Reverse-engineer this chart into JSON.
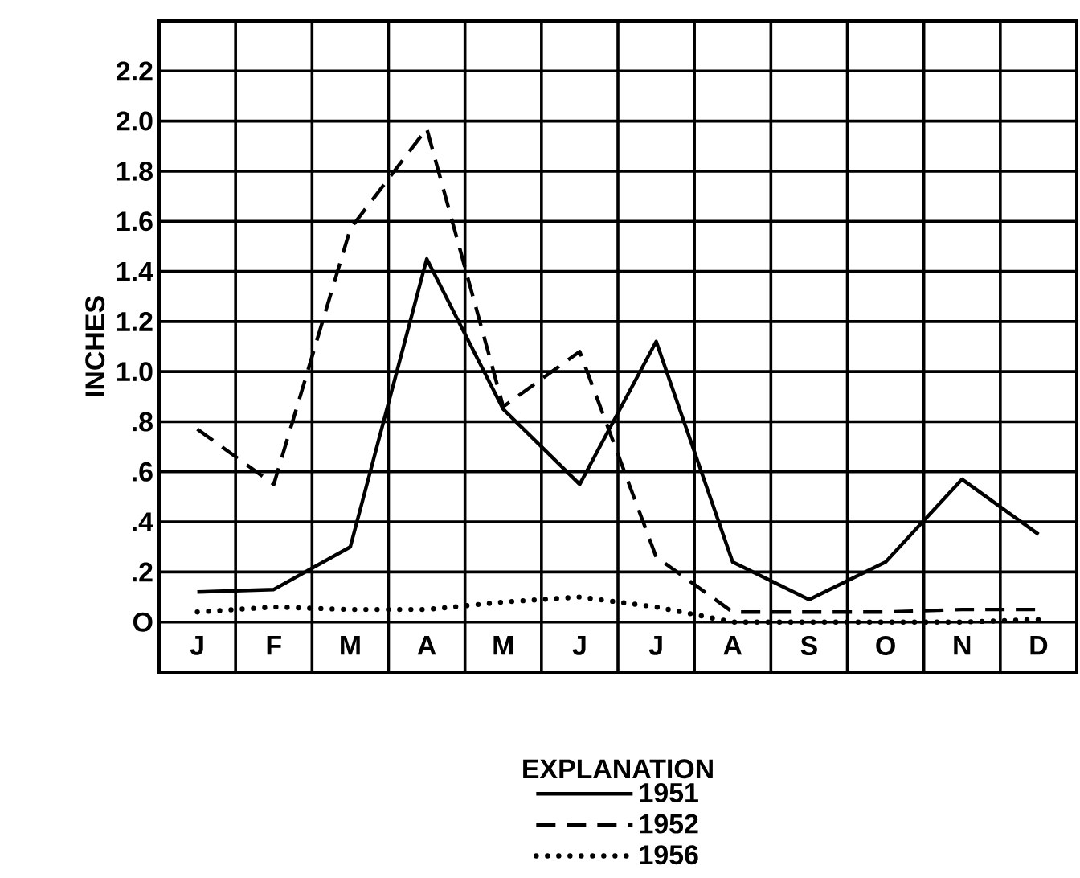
{
  "chart_data": {
    "type": "line",
    "ylabel": "INCHES",
    "legend_title": "EXPLANATION",
    "categories": [
      "J",
      "F",
      "M",
      "A",
      "M",
      "J",
      "J",
      "A",
      "S",
      "O",
      "N",
      "D"
    ],
    "ylim": [
      -0.2,
      2.4
    ],
    "yticks": [
      {
        "value": 0,
        "label": "O"
      },
      {
        "value": 0.2,
        "label": ".2"
      },
      {
        "value": 0.4,
        "label": ".4"
      },
      {
        "value": 0.6,
        "label": ".6"
      },
      {
        "value": 0.8,
        "label": ".8"
      },
      {
        "value": 1.0,
        "label": "1.0"
      },
      {
        "value": 1.2,
        "label": "1.2"
      },
      {
        "value": 1.4,
        "label": "1.4"
      },
      {
        "value": 1.6,
        "label": "1.6"
      },
      {
        "value": 1.8,
        "label": "1.8"
      },
      {
        "value": 2.0,
        "label": "2.0"
      },
      {
        "value": 2.2,
        "label": "2.2"
      }
    ],
    "grid": true,
    "legend": "bottom",
    "series": [
      {
        "name": "1951",
        "color": "#000000",
        "line_style": "solid",
        "values": [
          0.12,
          0.13,
          0.3,
          1.45,
          0.85,
          0.55,
          1.12,
          0.24,
          0.09,
          0.24,
          0.57,
          0.35
        ]
      },
      {
        "name": "1952",
        "color": "#000000",
        "line_style": "dashed",
        "values": [
          0.77,
          0.55,
          1.57,
          1.97,
          0.86,
          1.08,
          0.26,
          0.04,
          0.04,
          0.04,
          0.05,
          0.05
        ]
      },
      {
        "name": "1956",
        "color": "#000000",
        "line_style": "dotted",
        "values": [
          0.04,
          0.06,
          0.05,
          0.05,
          0.08,
          0.1,
          0.06,
          0.0,
          0.0,
          0.0,
          0.0,
          0.01
        ]
      }
    ]
  }
}
